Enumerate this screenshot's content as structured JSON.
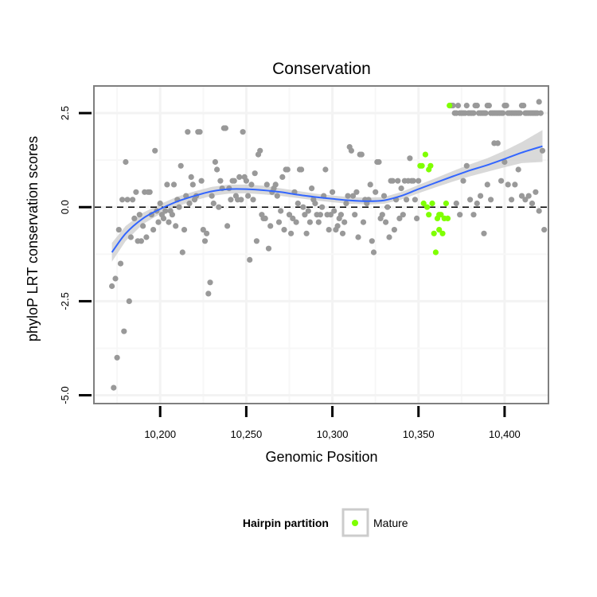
{
  "chart_data": {
    "type": "scatter",
    "title": "Conservation",
    "xlabel": "Genomic Position",
    "ylabel": "phyloP LRT conservation scores",
    "xlim": [
      10162,
      10425
    ],
    "ylim": [
      -5.2,
      3.2
    ],
    "x_ticks": [
      10200,
      10250,
      10300,
      10350,
      10400
    ],
    "x_tick_labels": [
      "10,200",
      "10,250",
      "10,300",
      "10,350",
      "10,400"
    ],
    "y_ticks": [
      -5.0,
      -2.5,
      0.0,
      2.5
    ],
    "y_tick_labels": [
      "-5.0",
      "-2.5",
      "0.0",
      "2.5"
    ],
    "reference_line_y": 0,
    "grid": true,
    "legend": {
      "position": "bottom",
      "title": "Hairpin partition",
      "entries": [
        {
          "label": "Mature",
          "color": "#7fff00"
        }
      ]
    },
    "colors": {
      "other": "#999999",
      "mature": "#7fff00",
      "smooth_line": "#3366ff",
      "ribbon": "#cccccc"
    },
    "series": [
      {
        "name": "",
        "color": "#999999",
        "points": [
          [
            10172,
            -2.1
          ],
          [
            10173,
            -4.8
          ],
          [
            10174,
            -1.9
          ],
          [
            10175,
            -4.0
          ],
          [
            10176,
            -0.6
          ],
          [
            10177,
            -1.5
          ],
          [
            10178,
            0.2
          ],
          [
            10179,
            -3.3
          ],
          [
            10180,
            1.2
          ],
          [
            10181,
            0.2
          ],
          [
            10182,
            -2.5
          ],
          [
            10183,
            -0.8
          ],
          [
            10184,
            0.2
          ],
          [
            10185,
            -0.3
          ],
          [
            10186,
            0.4
          ],
          [
            10187,
            -0.9
          ],
          [
            10188,
            -0.2
          ],
          [
            10189,
            -0.9
          ],
          [
            10190,
            -0.5
          ],
          [
            10191,
            0.4
          ],
          [
            10192,
            -0.8
          ],
          [
            10193,
            0.4
          ],
          [
            10194,
            0.4
          ],
          [
            10195,
            -0.2
          ],
          [
            10196,
            -0.6
          ],
          [
            10197,
            1.5
          ],
          [
            10198,
            -0.1
          ],
          [
            10199,
            -0.4
          ],
          [
            10200,
            0.1
          ],
          [
            10201,
            -0.2
          ],
          [
            10202,
            -0.3
          ],
          [
            10203,
            -0.1
          ],
          [
            10204,
            0.6
          ],
          [
            10205,
            -0.4
          ],
          [
            10206,
            -0.1
          ],
          [
            10207,
            -0.2
          ],
          [
            10208,
            0.6
          ],
          [
            10209,
            -0.5
          ],
          [
            10210,
            0.2
          ],
          [
            10211,
            0.0
          ],
          [
            10212,
            1.1
          ],
          [
            10213,
            -1.2
          ],
          [
            10214,
            -0.6
          ],
          [
            10215,
            0.3
          ],
          [
            10216,
            2.0
          ],
          [
            10217,
            0.1
          ],
          [
            10218,
            0.8
          ],
          [
            10219,
            0.6
          ],
          [
            10220,
            0.2
          ],
          [
            10221,
            0.3
          ],
          [
            10222,
            2.0
          ],
          [
            10223,
            2.0
          ],
          [
            10224,
            0.7
          ],
          [
            10225,
            -0.6
          ],
          [
            10226,
            -0.9
          ],
          [
            10227,
            -0.7
          ],
          [
            10228,
            -2.3
          ],
          [
            10229,
            -2.0
          ],
          [
            10230,
            0.3
          ],
          [
            10231,
            0.1
          ],
          [
            10232,
            1.2
          ],
          [
            10233,
            1.0
          ],
          [
            10234,
            0.0
          ],
          [
            10235,
            0.7
          ],
          [
            10236,
            0.5
          ],
          [
            10237,
            2.1
          ],
          [
            10238,
            2.1
          ],
          [
            10239,
            -0.5
          ],
          [
            10240,
            0.5
          ],
          [
            10241,
            0.2
          ],
          [
            10242,
            0.7
          ],
          [
            10243,
            0.7
          ],
          [
            10244,
            0.3
          ],
          [
            10245,
            0.2
          ],
          [
            10246,
            0.8
          ],
          [
            10247,
            0.2
          ],
          [
            10248,
            2.0
          ],
          [
            10249,
            0.8
          ],
          [
            10250,
            0.7
          ],
          [
            10251,
            0.3
          ],
          [
            10252,
            -1.4
          ],
          [
            10253,
            0.6
          ],
          [
            10254,
            0.2
          ],
          [
            10255,
            0.9
          ],
          [
            10256,
            -0.9
          ],
          [
            10257,
            1.4
          ],
          [
            10258,
            1.5
          ],
          [
            10259,
            -0.2
          ],
          [
            10260,
            -0.3
          ],
          [
            10261,
            -0.3
          ],
          [
            10262,
            0.6
          ],
          [
            10263,
            -1.1
          ],
          [
            10264,
            -0.5
          ],
          [
            10265,
            0.4
          ],
          [
            10266,
            0.5
          ],
          [
            10267,
            0.6
          ],
          [
            10268,
            0.3
          ],
          [
            10269,
            -0.4
          ],
          [
            10270,
            -0.1
          ],
          [
            10271,
            0.8
          ],
          [
            10272,
            -0.6
          ],
          [
            10273,
            1.0
          ],
          [
            10274,
            1.0
          ],
          [
            10275,
            -0.2
          ],
          [
            10276,
            -0.7
          ],
          [
            10277,
            -0.3
          ],
          [
            10278,
            0.4
          ],
          [
            10279,
            -0.4
          ],
          [
            10280,
            0.1
          ],
          [
            10281,
            1.0
          ],
          [
            10282,
            1.0
          ],
          [
            10283,
            0.0
          ],
          [
            10284,
            -0.2
          ],
          [
            10285,
            -0.7
          ],
          [
            10286,
            -0.1
          ],
          [
            10287,
            -0.4
          ],
          [
            10288,
            0.5
          ],
          [
            10289,
            0.2
          ],
          [
            10290,
            0.1
          ],
          [
            10291,
            -0.2
          ],
          [
            10292,
            -0.4
          ],
          [
            10293,
            -0.2
          ],
          [
            10294,
            0.0
          ],
          [
            10295,
            0.3
          ],
          [
            10296,
            1.0
          ],
          [
            10297,
            -0.2
          ],
          [
            10298,
            -0.6
          ],
          [
            10299,
            -0.2
          ],
          [
            10300,
            0.4
          ],
          [
            10301,
            -0.1
          ],
          [
            10302,
            -0.6
          ],
          [
            10303,
            -0.5
          ],
          [
            10304,
            -0.3
          ],
          [
            10305,
            -0.2
          ],
          [
            10306,
            -0.7
          ],
          [
            10307,
            -0.4
          ],
          [
            10308,
            0.1
          ],
          [
            10309,
            0.3
          ],
          [
            10310,
            1.6
          ],
          [
            10311,
            1.5
          ],
          [
            10312,
            0.3
          ],
          [
            10313,
            -0.2
          ],
          [
            10314,
            0.4
          ],
          [
            10315,
            -0.8
          ],
          [
            10316,
            1.4
          ],
          [
            10317,
            1.4
          ],
          [
            10318,
            -0.4
          ],
          [
            10319,
            0.2
          ],
          [
            10320,
            0.1
          ],
          [
            10321,
            0.2
          ],
          [
            10322,
            0.6
          ],
          [
            10323,
            -0.9
          ],
          [
            10324,
            -1.2
          ],
          [
            10325,
            0.4
          ],
          [
            10326,
            1.2
          ],
          [
            10327,
            1.2
          ],
          [
            10328,
            -0.3
          ],
          [
            10329,
            -0.2
          ],
          [
            10330,
            0.3
          ],
          [
            10331,
            -0.4
          ],
          [
            10332,
            0.0
          ],
          [
            10333,
            -0.8
          ],
          [
            10334,
            0.7
          ],
          [
            10335,
            0.7
          ],
          [
            10336,
            -0.6
          ],
          [
            10337,
            0.2
          ],
          [
            10338,
            0.7
          ],
          [
            10339,
            -0.3
          ],
          [
            10340,
            0.5
          ],
          [
            10341,
            -0.2
          ],
          [
            10342,
            0.7
          ],
          [
            10343,
            0.2
          ],
          [
            10344,
            0.7
          ],
          [
            10345,
            1.3
          ],
          [
            10346,
            0.7
          ],
          [
            10347,
            0.7
          ],
          [
            10348,
            0.2
          ],
          [
            10349,
            -0.3
          ],
          [
            10350,
            0.7
          ],
          [
            10369,
            2.7
          ],
          [
            10370,
            2.7
          ],
          [
            10371,
            2.5
          ],
          [
            10372,
            2.5
          ],
          [
            10373,
            2.7
          ],
          [
            10374,
            2.5
          ],
          [
            10375,
            2.5
          ],
          [
            10376,
            2.5
          ],
          [
            10377,
            2.5
          ],
          [
            10378,
            2.7
          ],
          [
            10379,
            2.5
          ],
          [
            10380,
            2.5
          ],
          [
            10381,
            2.5
          ],
          [
            10382,
            2.5
          ],
          [
            10383,
            2.7
          ],
          [
            10384,
            2.7
          ],
          [
            10385,
            2.5
          ],
          [
            10386,
            2.5
          ],
          [
            10387,
            2.5
          ],
          [
            10388,
            2.5
          ],
          [
            10389,
            2.5
          ],
          [
            10390,
            2.7
          ],
          [
            10391,
            2.7
          ],
          [
            10392,
            2.5
          ],
          [
            10393,
            2.5
          ],
          [
            10394,
            2.5
          ],
          [
            10395,
            2.5
          ],
          [
            10396,
            2.5
          ],
          [
            10397,
            2.5
          ],
          [
            10398,
            2.5
          ],
          [
            10399,
            2.5
          ],
          [
            10400,
            2.7
          ],
          [
            10401,
            2.7
          ],
          [
            10402,
            2.5
          ],
          [
            10403,
            2.5
          ],
          [
            10404,
            2.5
          ],
          [
            10405,
            2.5
          ],
          [
            10406,
            2.5
          ],
          [
            10407,
            2.5
          ],
          [
            10408,
            2.5
          ],
          [
            10409,
            2.5
          ],
          [
            10410,
            2.7
          ],
          [
            10411,
            2.7
          ],
          [
            10412,
            2.5
          ],
          [
            10413,
            2.5
          ],
          [
            10414,
            2.5
          ],
          [
            10415,
            2.5
          ],
          [
            10416,
            2.5
          ],
          [
            10417,
            2.5
          ],
          [
            10418,
            2.5
          ],
          [
            10419,
            2.5
          ],
          [
            10420,
            2.8
          ],
          [
            10421,
            2.5
          ],
          [
            10372,
            0.1
          ],
          [
            10374,
            -0.2
          ],
          [
            10376,
            0.7
          ],
          [
            10378,
            1.1
          ],
          [
            10380,
            0.2
          ],
          [
            10382,
            -0.2
          ],
          [
            10384,
            0.1
          ],
          [
            10386,
            0.3
          ],
          [
            10388,
            -0.7
          ],
          [
            10390,
            0.6
          ],
          [
            10392,
            0.2
          ],
          [
            10394,
            1.7
          ],
          [
            10396,
            1.7
          ],
          [
            10398,
            0.7
          ],
          [
            10400,
            1.2
          ],
          [
            10402,
            0.6
          ],
          [
            10404,
            0.2
          ],
          [
            10406,
            0.6
          ],
          [
            10408,
            1.0
          ],
          [
            10410,
            0.3
          ],
          [
            10412,
            0.2
          ],
          [
            10414,
            0.3
          ],
          [
            10416,
            0.1
          ],
          [
            10418,
            0.4
          ],
          [
            10420,
            -0.1
          ],
          [
            10422,
            1.5
          ],
          [
            10423,
            -0.6
          ]
        ]
      },
      {
        "name": "Mature",
        "color": "#7fff00",
        "points": [
          [
            10351,
            1.1
          ],
          [
            10352,
            1.1
          ],
          [
            10353,
            0.1
          ],
          [
            10354,
            1.4
          ],
          [
            10355,
            0.0
          ],
          [
            10356,
            -0.2
          ],
          [
            10357,
            1.1
          ],
          [
            10358,
            0.1
          ],
          [
            10359,
            -0.7
          ],
          [
            10360,
            -1.2
          ],
          [
            10361,
            -0.3
          ],
          [
            10362,
            -0.2
          ],
          [
            10363,
            -0.2
          ],
          [
            10364,
            -0.7
          ],
          [
            10365,
            -0.3
          ],
          [
            10366,
            0.1
          ],
          [
            10367,
            -0.3
          ],
          [
            10368,
            2.7
          ],
          [
            10356,
            1.0
          ],
          [
            10362,
            -0.6
          ]
        ]
      }
    ],
    "smooth": {
      "x": [
        10172,
        10180,
        10190,
        10200,
        10210,
        10220,
        10230,
        10240,
        10250,
        10260,
        10270,
        10280,
        10290,
        10300,
        10310,
        10320,
        10330,
        10340,
        10350,
        10360,
        10370,
        10380,
        10390,
        10400,
        10410,
        10422
      ],
      "y": [
        -1.2,
        -0.7,
        -0.3,
        -0.05,
        0.15,
        0.3,
        0.42,
        0.48,
        0.48,
        0.45,
        0.4,
        0.33,
        0.27,
        0.22,
        0.18,
        0.16,
        0.18,
        0.3,
        0.48,
        0.65,
        0.82,
        0.98,
        1.12,
        1.28,
        1.45,
        1.62
      ],
      "lower": [
        -1.45,
        -0.9,
        -0.45,
        -0.18,
        0.02,
        0.18,
        0.3,
        0.36,
        0.37,
        0.34,
        0.3,
        0.24,
        0.18,
        0.13,
        0.09,
        0.07,
        0.09,
        0.2,
        0.37,
        0.53,
        0.68,
        0.82,
        0.94,
        1.06,
        1.17,
        1.2
      ],
      "upper": [
        -0.95,
        -0.5,
        -0.15,
        0.08,
        0.28,
        0.42,
        0.54,
        0.6,
        0.6,
        0.57,
        0.5,
        0.43,
        0.36,
        0.31,
        0.27,
        0.25,
        0.27,
        0.4,
        0.59,
        0.77,
        0.96,
        1.14,
        1.3,
        1.5,
        1.73,
        2.05
      ]
    }
  }
}
